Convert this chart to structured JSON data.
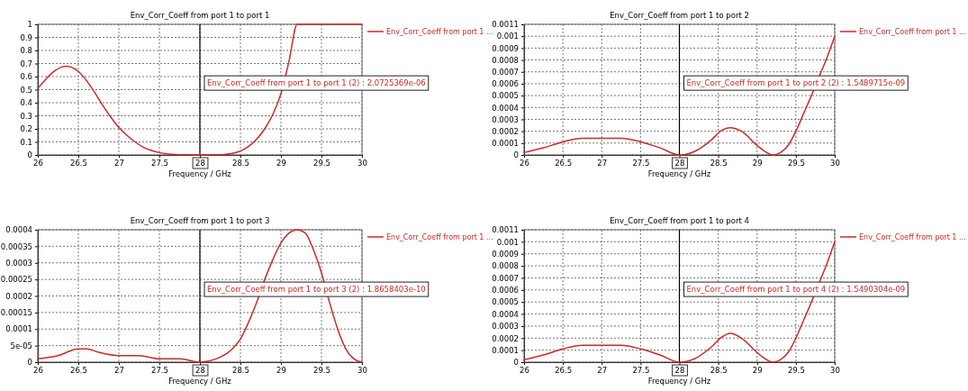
{
  "chart_data": [
    {
      "type": "line",
      "title": "Env_Corr_Coeff from port 1 to port 1",
      "xlabel": "Frequency / GHz",
      "legend": "top right",
      "grid": true,
      "line_style": "solid",
      "xlim": [
        26,
        30
      ],
      "xticks": [
        26,
        26.5,
        27,
        27.5,
        28,
        28.5,
        29,
        29.5,
        30
      ],
      "ylim": [
        0,
        1
      ],
      "yticks": [
        0,
        0.1,
        0.2,
        0.3,
        0.4,
        0.5,
        0.6,
        0.7,
        0.8,
        0.9,
        1
      ],
      "ref_lines": [
        {
          "axis": "x",
          "value": 28,
          "color": "#000000"
        }
      ],
      "annotations": [
        "Env_Corr_Coeff from port 1 to port 1 (2) : 2.0725369e-06"
      ],
      "series": [
        {
          "name": "Env_Corr_Coeff from port 1 ...",
          "color": "#cc2a2a",
          "x": [
            26,
            26.1,
            26.2,
            26.3,
            26.35,
            26.4,
            26.5,
            26.6,
            26.7,
            26.8,
            26.9,
            27,
            27.1,
            27.2,
            27.3,
            27.4,
            27.5,
            27.6,
            27.7,
            27.8,
            28,
            28.2,
            28.3,
            28.4,
            28.5,
            28.6,
            28.7,
            28.8,
            28.9,
            29,
            29.1,
            29.2,
            30
          ],
          "values": [
            0.51,
            0.58,
            0.64,
            0.675,
            0.68,
            0.675,
            0.64,
            0.57,
            0.48,
            0.38,
            0.29,
            0.21,
            0.15,
            0.1,
            0.06,
            0.035,
            0.018,
            0.008,
            0.003,
            0.001,
            0,
            0.001,
            0.004,
            0.012,
            0.03,
            0.065,
            0.12,
            0.2,
            0.31,
            0.47,
            0.72,
            1,
            1
          ]
        }
      ]
    },
    {
      "type": "line",
      "title": "Env_Corr_Coeff from port 1 to port 2",
      "xlabel": "Frequency / GHz",
      "legend": "top right",
      "grid": true,
      "line_style": "solid",
      "xlim": [
        26,
        30
      ],
      "xticks": [
        26,
        26.5,
        27,
        27.5,
        28,
        28.5,
        29,
        29.5,
        30
      ],
      "ylim": [
        0,
        0.0011
      ],
      "yticks": [
        0,
        0.0001,
        0.0002,
        0.0003,
        0.0004,
        0.0005,
        0.0006,
        0.0007,
        0.0008,
        0.0009,
        0.001,
        0.0011
      ],
      "ref_lines": [
        {
          "axis": "x",
          "value": 28,
          "color": "#000000"
        }
      ],
      "annotations": [
        "Env_Corr_Coeff from port 1 to port 2 (2) : 1.5489715e-09"
      ],
      "series": [
        {
          "name": "Env_Corr_Coeff from port 1 ...",
          "color": "#cc2a2a",
          "x": [
            26,
            26.25,
            26.5,
            26.75,
            27,
            27.25,
            27.5,
            27.75,
            28,
            28.2,
            28.4,
            28.55,
            28.65,
            28.8,
            29,
            29.1,
            29.2,
            29.3,
            29.4,
            29.5,
            29.6,
            29.7,
            29.8,
            29.9,
            30
          ],
          "values": [
            2e-05,
            6e-05,
            0.00011,
            0.00014,
            0.00014,
            0.00014,
            0.00011,
            6e-05,
            0,
            3e-05,
            0.00012,
            0.00021,
            0.00023,
            0.0002,
            8e-05,
            3e-05,
            0,
            2e-05,
            8e-05,
            0.0002,
            0.00035,
            0.0005,
            0.00066,
            0.00082,
            0.001
          ]
        }
      ]
    },
    {
      "type": "line",
      "title": "Env_Corr_Coeff from port 1 to port 3",
      "xlabel": "Frequency / GHz",
      "legend": "top right",
      "grid": true,
      "line_style": "solid",
      "xlim": [
        26,
        30
      ],
      "xticks": [
        26,
        26.5,
        27,
        27.5,
        28,
        28.5,
        29,
        29.5,
        30
      ],
      "ylim": [
        0,
        0.0004
      ],
      "yticks": [
        0,
        {
          "value": 5e-05,
          "label": "5e-05"
        },
        0.0001,
        0.00015,
        0.0002,
        0.00025,
        0.0003,
        0.00035,
        0.0004
      ],
      "ref_lines": [
        {
          "axis": "x",
          "value": 28,
          "color": "#000000"
        }
      ],
      "annotations": [
        "Env_Corr_Coeff from port 1 to port 3 (2) : 1.8658403e-10"
      ],
      "series": [
        {
          "name": "Env_Corr_Coeff from port 1 ...",
          "color": "#cc2a2a",
          "x": [
            26,
            26.25,
            26.5,
            26.6,
            26.75,
            27,
            27.25,
            27.5,
            27.75,
            28,
            28.2,
            28.4,
            28.5,
            28.6,
            28.7,
            28.8,
            28.9,
            29,
            29.1,
            29.2,
            29.3,
            29.4,
            29.5,
            29.6,
            29.7,
            29.8,
            29.9,
            30
          ],
          "values": [
            1e-05,
            2e-05,
            4e-05,
            4e-05,
            3e-05,
            2e-05,
            2e-05,
            1e-05,
            1e-05,
            0,
            1e-05,
            4e-05,
            7e-05,
            0.00012,
            0.00018,
            0.00025,
            0.00031,
            0.00036,
            0.00039,
            0.0004,
            0.00039,
            0.00034,
            0.00027,
            0.00018,
            0.0001,
            4e-05,
            1e-05,
            0
          ]
        }
      ]
    },
    {
      "type": "line",
      "title": "Env_Corr_Coeff from port 1 to port 4",
      "xlabel": "Frequency / GHz",
      "legend": "top right",
      "grid": true,
      "line_style": "solid",
      "xlim": [
        26,
        30
      ],
      "xticks": [
        26,
        26.5,
        27,
        27.5,
        28,
        28.5,
        29,
        29.5,
        30
      ],
      "ylim": [
        0,
        0.0011
      ],
      "yticks": [
        0,
        0.0001,
        0.0002,
        0.0003,
        0.0004,
        0.0005,
        0.0006,
        0.0007,
        0.0008,
        0.0009,
        0.001,
        0.0011
      ],
      "ref_lines": [
        {
          "axis": "x",
          "value": 28,
          "color": "#000000"
        }
      ],
      "annotations": [
        "Env_Corr_Coeff from port 1 to port 4 (2) : 1.5490304e-09"
      ],
      "series": [
        {
          "name": "Env_Corr_Coeff from port 1 ...",
          "color": "#cc2a2a",
          "x": [
            26,
            26.25,
            26.5,
            26.75,
            27,
            27.25,
            27.5,
            27.75,
            28,
            28.2,
            28.4,
            28.55,
            28.65,
            28.8,
            29,
            29.1,
            29.2,
            29.3,
            29.4,
            29.5,
            29.6,
            29.7,
            29.8,
            29.9,
            30
          ],
          "values": [
            2e-05,
            6e-05,
            0.00011,
            0.00014,
            0.00014,
            0.00014,
            0.00011,
            6e-05,
            0,
            3e-05,
            0.00012,
            0.00021,
            0.00024,
            0.0002,
            8e-05,
            3e-05,
            0,
            2e-05,
            8e-05,
            0.0002,
            0.00035,
            0.0005,
            0.00066,
            0.00082,
            0.001
          ]
        }
      ]
    }
  ]
}
